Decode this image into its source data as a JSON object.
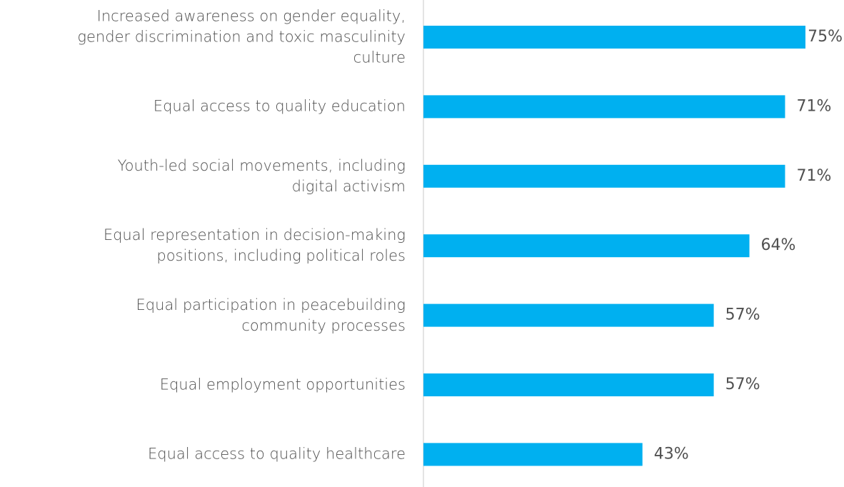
{
  "chart_data": {
    "type": "bar",
    "orientation": "horizontal",
    "categories": [
      "Increased awareness on gender equality,\ngender discrimination and toxic masculinity\nculture",
      "Equal access to quality education",
      "Youth-led social movements, including\ndigital activism",
      "Equal representation in decision-making\npositions, including political roles",
      "Equal participation in peacebuilding\ncommunity processes",
      "Equal employment opportunities",
      "Equal access to quality healthcare"
    ],
    "values": [
      75,
      71,
      71,
      64,
      57,
      57,
      43
    ],
    "value_labels": [
      "75%",
      "71%",
      "71%",
      "64%",
      "57%",
      "57%",
      "43%"
    ],
    "color": "#00b0f0"
  }
}
